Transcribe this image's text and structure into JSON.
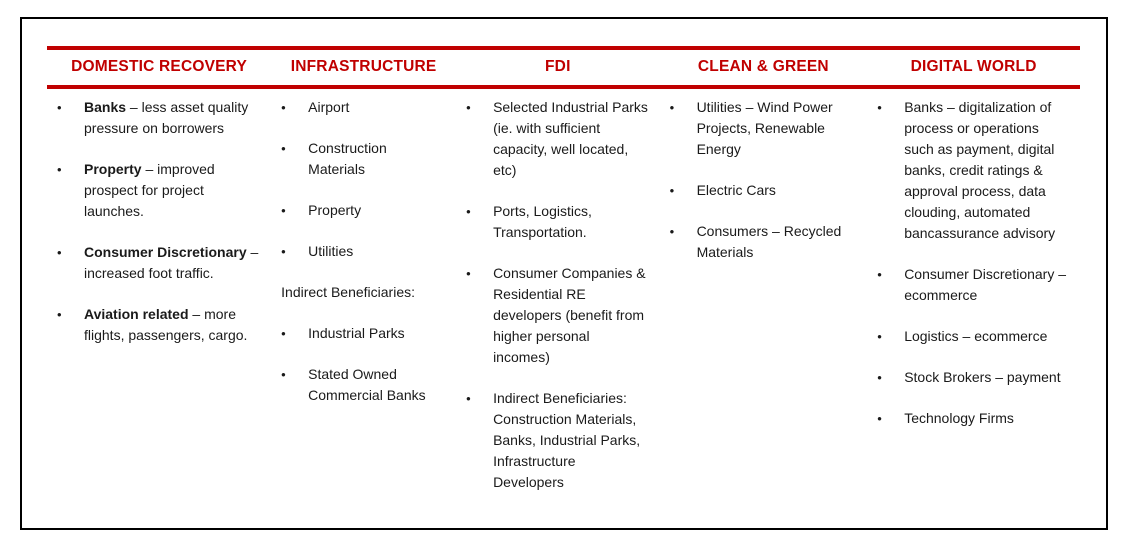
{
  "accent_color": "#C00000",
  "border_color": "#000000",
  "columns": [
    {
      "header": "DOMESTIC RECOVERY",
      "items": [
        {
          "type": "bullet",
          "bold": "Banks",
          "text": " – less asset quality pressure on borrowers"
        },
        {
          "type": "bullet",
          "bold": "Property",
          "text": " – improved prospect for project launches."
        },
        {
          "type": "bullet",
          "bold": "Consumer Discretionary",
          "text": " – increased foot traffic."
        },
        {
          "type": "bullet",
          "bold": "Aviation related",
          "text": " – more flights, passengers, cargo."
        }
      ]
    },
    {
      "header": "INFRASTRUCTURE",
      "items": [
        {
          "type": "bullet",
          "text": "Airport"
        },
        {
          "type": "bullet",
          "text": "Construction Materials"
        },
        {
          "type": "bullet",
          "text": "Property"
        },
        {
          "type": "bullet",
          "text": "Utilities"
        },
        {
          "type": "plain",
          "text": "Indirect Beneficiaries:"
        },
        {
          "type": "bullet",
          "text": "Industrial Parks"
        },
        {
          "type": "bullet",
          "text": "Stated Owned Commercial Banks"
        }
      ]
    },
    {
      "header": "FDI",
      "items": [
        {
          "type": "bullet",
          "text": "Selected Industrial Parks (ie. with sufficient capacity, well located, etc)"
        },
        {
          "type": "bullet",
          "text": "Ports, Logistics, Transportation."
        },
        {
          "type": "bullet",
          "text": "Consumer Companies & Residential RE developers (benefit from higher personal incomes)"
        },
        {
          "type": "bullet",
          "text": "Indirect Beneficiaries: Construction Materials, Banks, Industrial Parks, Infrastructure Developers"
        }
      ]
    },
    {
      "header": "CLEAN & GREEN",
      "items": [
        {
          "type": "bullet",
          "text": "Utilities – Wind Power Projects, Renewable Energy"
        },
        {
          "type": "bullet",
          "text": "Electric Cars"
        },
        {
          "type": "bullet",
          "text": "Consumers – Recycled Materials"
        }
      ]
    },
    {
      "header": "DIGITAL WORLD",
      "items": [
        {
          "type": "bullet",
          "text": "Banks – digitalization of process or operations such as payment, digital banks, credit ratings & approval process, data clouding, automated bancassurance advisory"
        },
        {
          "type": "bullet",
          "text": "Consumer Discretionary – ecommerce"
        },
        {
          "type": "bullet",
          "text": "Logistics – ecommerce"
        },
        {
          "type": "bullet",
          "text": "Stock Brokers – payment"
        },
        {
          "type": "bullet",
          "text": "Technology Firms"
        }
      ]
    }
  ]
}
